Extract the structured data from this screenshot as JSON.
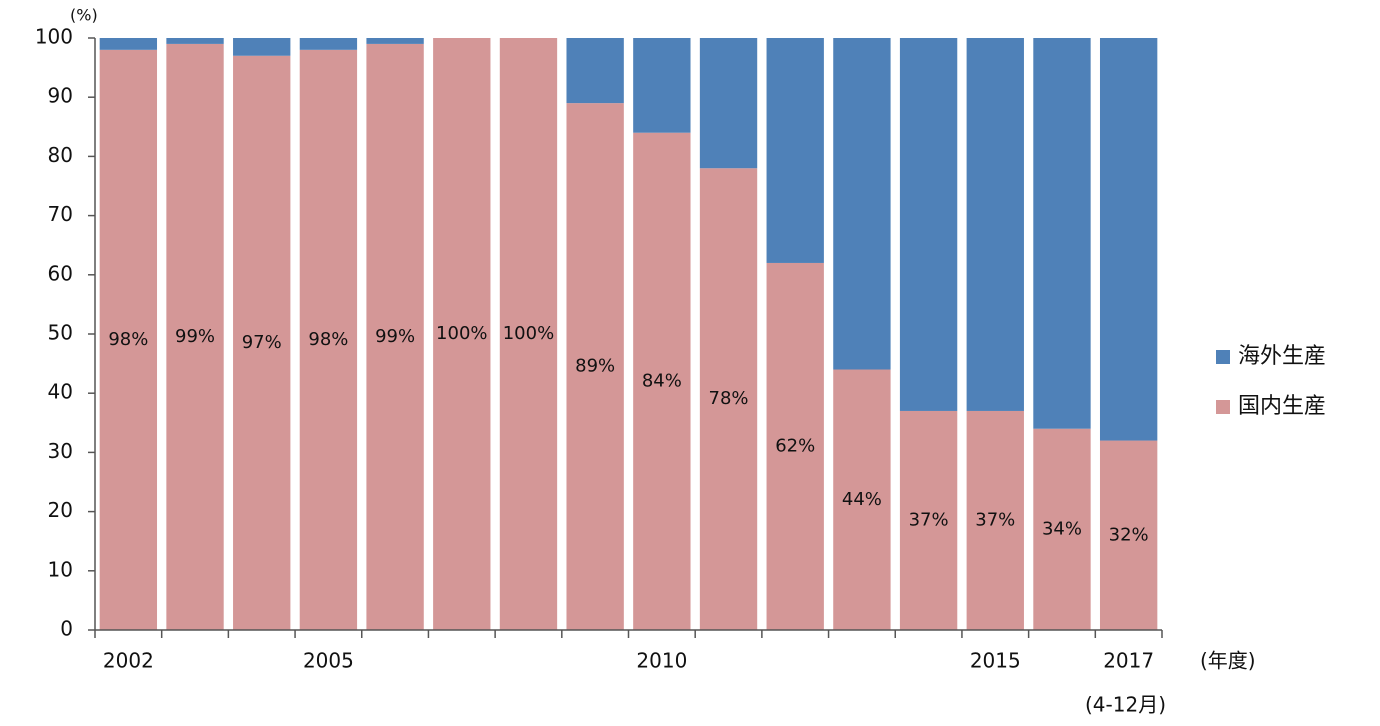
{
  "chart_data": {
    "type": "stacked_bar",
    "y_unit": "(%)",
    "x_unit": "(年度)",
    "annotation": "(4-12月)",
    "categories": [
      "2002",
      null,
      null,
      "2005",
      null,
      null,
      null,
      null,
      "2010",
      null,
      null,
      null,
      null,
      "2015",
      null,
      "2017"
    ],
    "series": [
      {
        "name": "国内生産",
        "color": "#d49797",
        "values": [
          98,
          99,
          97,
          98,
          99,
          100,
          100,
          89,
          84,
          78,
          62,
          44,
          37,
          37,
          34,
          32
        ],
        "value_labels": [
          "98%",
          "99%",
          "97%",
          "98%",
          "99%",
          "100%",
          "100%",
          "89%",
          "84%",
          "78%",
          "62%",
          "44%",
          "37%",
          "37%",
          "34%",
          "32%"
        ]
      },
      {
        "name": "海外生産",
        "color": "#4f81b8",
        "values": [
          2,
          1,
          3,
          2,
          1,
          0,
          0,
          11,
          16,
          22,
          38,
          56,
          63,
          63,
          66,
          68
        ]
      }
    ],
    "ylim": [
      0,
      100
    ],
    "yticks": [
      0,
      10,
      20,
      30,
      40,
      50,
      60,
      70,
      80,
      90,
      100
    ],
    "grid": false
  }
}
